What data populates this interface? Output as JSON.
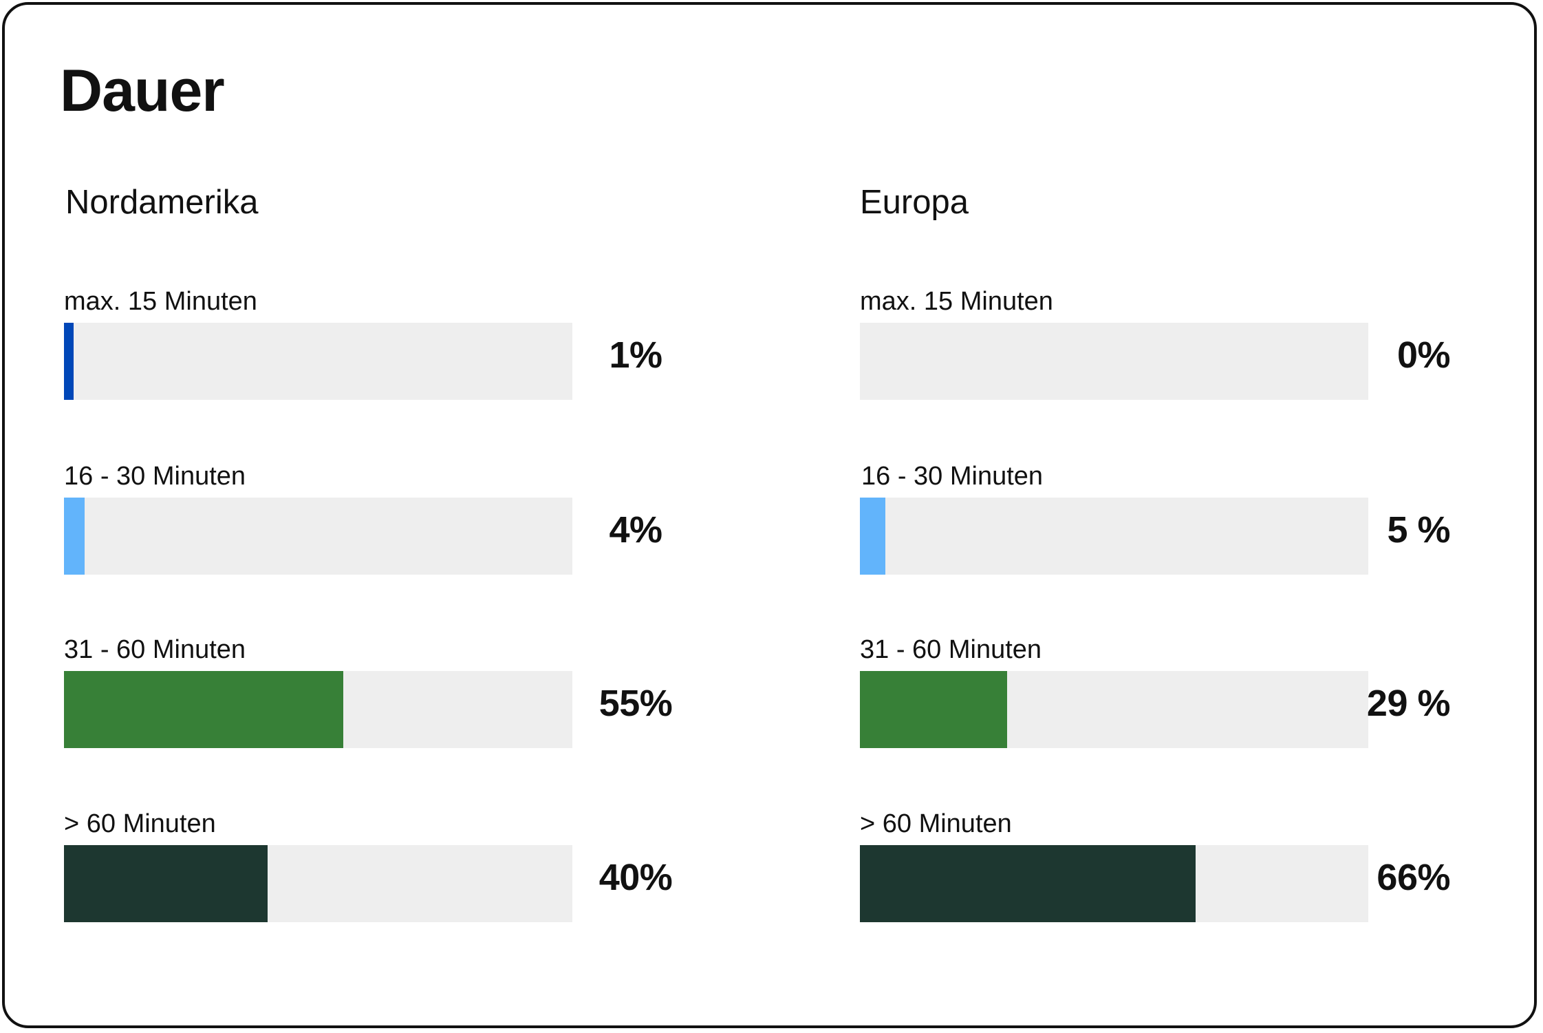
{
  "chart_data": {
    "type": "bar",
    "title": "Dauer",
    "categories": [
      "max. 15 Minuten",
      "16 - 30 Minuten",
      "31 - 60 Minuten",
      "> 60 Minuten"
    ],
    "panels": [
      {
        "name": "Nordamerika",
        "values": [
          1,
          4,
          55,
          40
        ],
        "labels": [
          "1%",
          "4%",
          "55%",
          "40%"
        ]
      },
      {
        "name": "Europa",
        "values": [
          0,
          5,
          29,
          66
        ],
        "labels": [
          "0%",
          "5 %",
          "29 %",
          "66%"
        ]
      }
    ],
    "colors": [
      "#0047b8",
      "#62b4fb",
      "#378037",
      "#1d3730"
    ],
    "track_color": "#eeeeee",
    "xlim": [
      0,
      100
    ]
  }
}
